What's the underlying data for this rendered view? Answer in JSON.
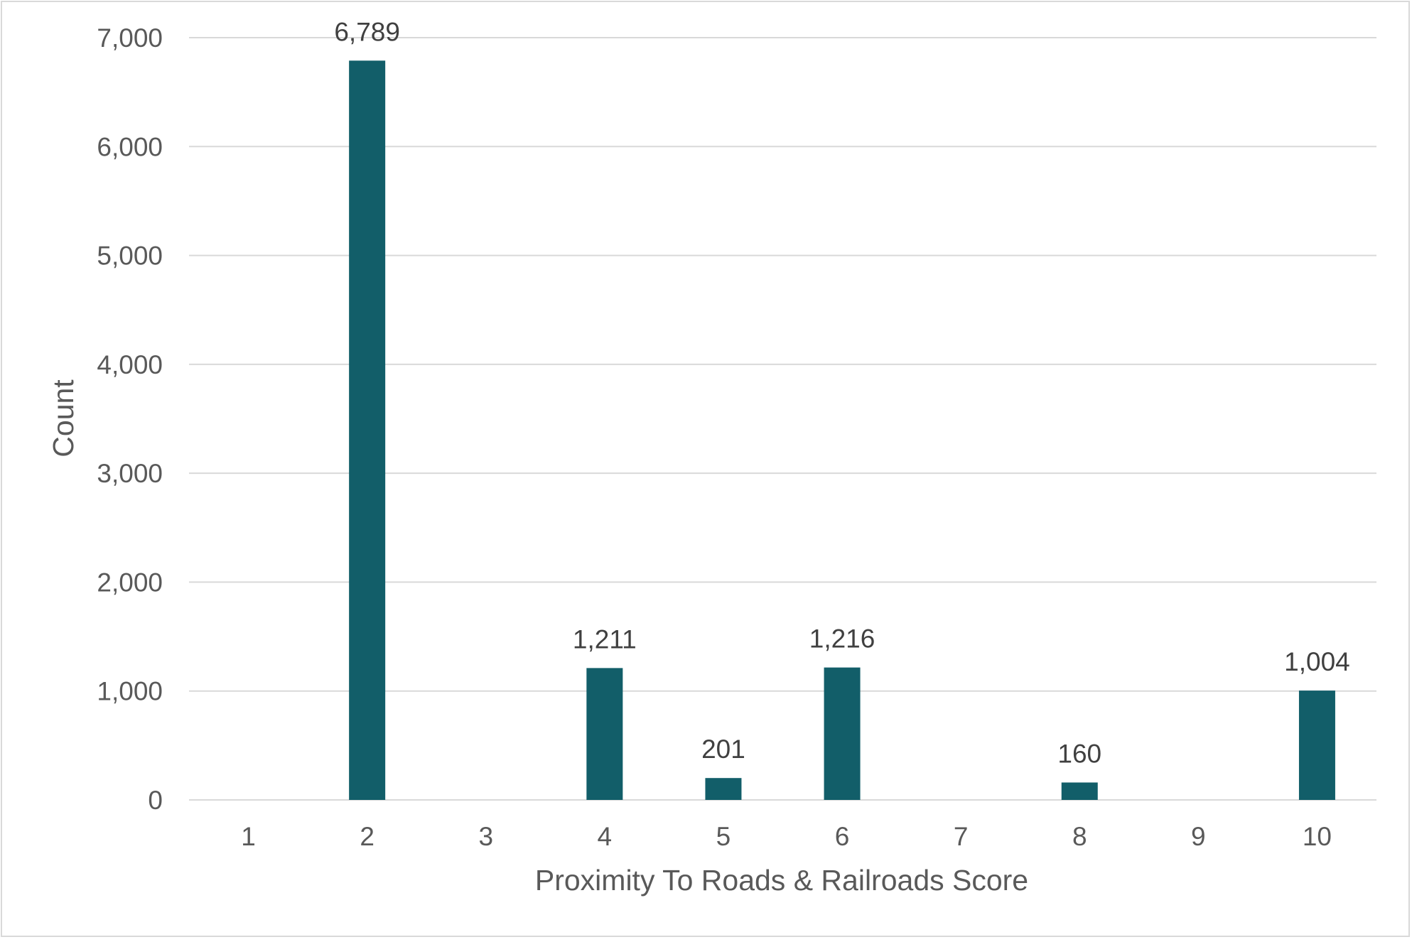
{
  "chart_data": {
    "type": "bar",
    "xlabel": "Proximity To Roads & Railroads Score",
    "ylabel": "Count",
    "categories": [
      "1",
      "2",
      "3",
      "4",
      "5",
      "6",
      "7",
      "8",
      "9",
      "10"
    ],
    "values": [
      0,
      6789,
      0,
      1211,
      201,
      1216,
      0,
      160,
      0,
      1004
    ],
    "data_labels": [
      "",
      "6,789",
      "",
      "1,211",
      "201",
      "1,216",
      "",
      "160",
      "",
      "1,004"
    ],
    "ylim": [
      0,
      7000
    ],
    "yticks": [
      0,
      1000,
      2000,
      3000,
      4000,
      5000,
      6000,
      7000
    ],
    "ytick_labels": [
      "0",
      "1,000",
      "2,000",
      "3,000",
      "4,000",
      "5,000",
      "6,000",
      "7,000"
    ],
    "grid": true,
    "colors": {
      "bar": "#125e69",
      "grid": "#d9d9d9",
      "tick_text": "#595959",
      "label_text": "#404040"
    }
  }
}
